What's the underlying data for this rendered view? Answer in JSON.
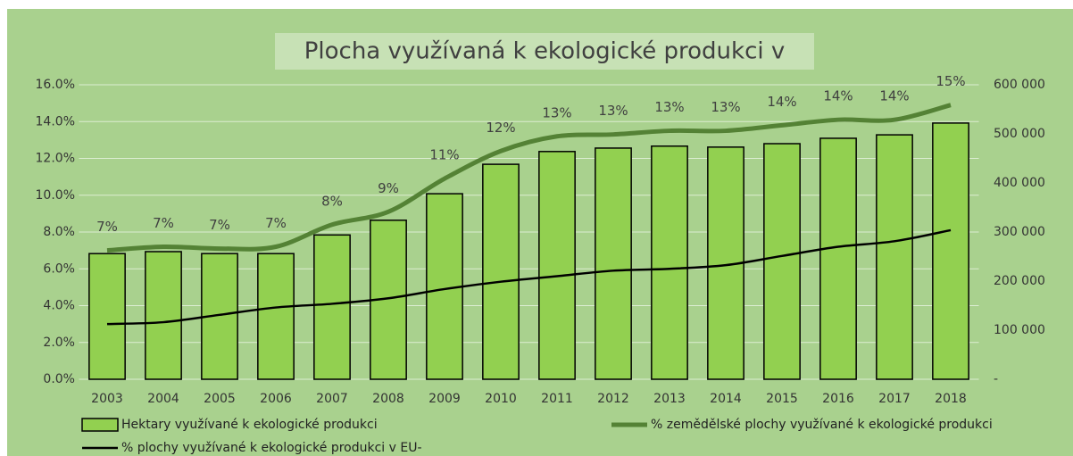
{
  "chart_data": {
    "type": "bar",
    "title": "Plocha využívaná k ekologické produkci v",
    "categories": [
      "2003",
      "2004",
      "2005",
      "2006",
      "2007",
      "2008",
      "2009",
      "2010",
      "2011",
      "2012",
      "2013",
      "2014",
      "2015",
      "2016",
      "2017",
      "2018"
    ],
    "series": [
      {
        "name": "Hektary využívané k ekologické produkci",
        "type": "bar",
        "axis": "y2",
        "color": "#92d050",
        "values": [
          256000,
          260000,
          256000,
          256000,
          294000,
          324000,
          378000,
          438000,
          464000,
          471000,
          475000,
          473000,
          480000,
          491000,
          498000,
          522000
        ]
      },
      {
        "name": "% zemědělské plochy využívané k ekologické produkci",
        "type": "line",
        "color": "#548235",
        "values": [
          7.0,
          7.2,
          7.1,
          7.2,
          8.4,
          9.1,
          10.9,
          12.4,
          13.2,
          13.3,
          13.5,
          13.5,
          13.8,
          14.1,
          14.1,
          14.9
        ],
        "value_labels": [
          "7%",
          "7%",
          "7%",
          "7%",
          "8%",
          "9%",
          "11%",
          "12%",
          "13%",
          "13%",
          "13%",
          "13%",
          "14%",
          "14%",
          "14%",
          "15%"
        ]
      },
      {
        "name": "% plochy využívané k ekologické produkci v EU-",
        "type": "line",
        "color": "#000000",
        "values": [
          3.0,
          3.1,
          3.5,
          3.9,
          4.1,
          4.4,
          4.9,
          5.3,
          5.6,
          5.9,
          6.0,
          6.2,
          6.7,
          7.2,
          7.5,
          8.1
        ]
      }
    ],
    "ylim": [
      0,
      16
    ],
    "yticks": [
      {
        "value": 0,
        "label": "0.0%"
      },
      {
        "value": 2,
        "label": "2.0%"
      },
      {
        "value": 4,
        "label": "4.0%"
      },
      {
        "value": 6,
        "label": "6.0%"
      },
      {
        "value": 8,
        "label": "8.0%"
      },
      {
        "value": 10,
        "label": "10.0%"
      },
      {
        "value": 12,
        "label": "12.0%"
      },
      {
        "value": 14,
        "label": "14.0%"
      },
      {
        "value": 16,
        "label": "16.0%"
      }
    ],
    "y2lim": [
      0,
      600000
    ],
    "y2ticks": [
      {
        "value": 0,
        "label": "-"
      },
      {
        "value": 100000,
        "label": "100 000"
      },
      {
        "value": 200000,
        "label": "200 000"
      },
      {
        "value": 300000,
        "label": "300 000"
      },
      {
        "value": 400000,
        "label": "400 000"
      },
      {
        "value": 500000,
        "label": "500 000"
      },
      {
        "value": 600000,
        "label": "600 000"
      }
    ],
    "grid": true,
    "legend": "bottom"
  }
}
